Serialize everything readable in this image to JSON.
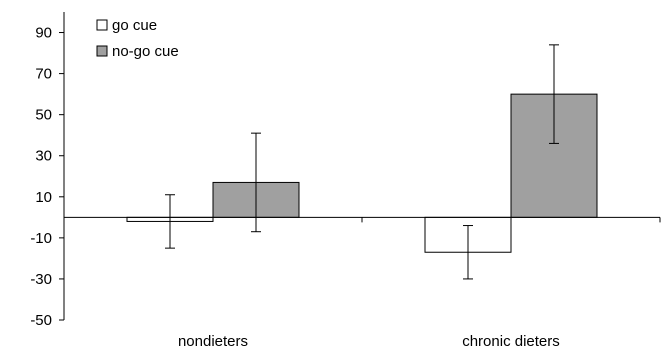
{
  "chart_data": {
    "type": "bar",
    "categories": [
      "nondieters",
      "chronic dieters"
    ],
    "series": [
      {
        "name": "go cue",
        "values": [
          -2,
          -17
        ],
        "error": [
          13,
          13
        ],
        "fill": "#ffffff"
      },
      {
        "name": "no-go cue",
        "values": [
          17,
          60
        ],
        "error": [
          24,
          24
        ],
        "fill": "#a0a0a0"
      }
    ],
    "yticks": [
      90,
      70,
      50,
      30,
      10,
      -10,
      -30,
      -50
    ],
    "ylim": [
      -50,
      100
    ],
    "title": "",
    "xlabel": "",
    "ylabel": "",
    "grid": false,
    "legend_position": "top-left"
  }
}
